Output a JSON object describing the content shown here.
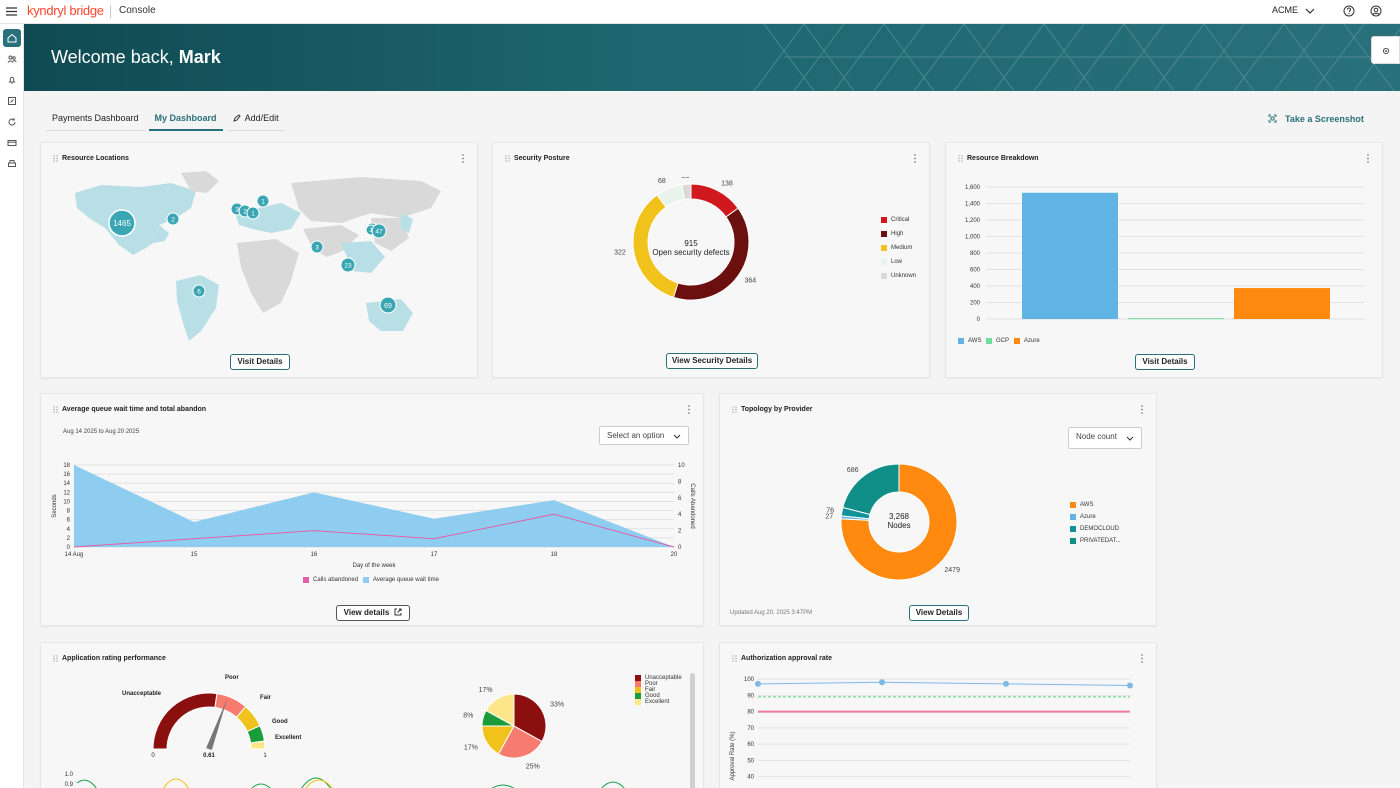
{
  "topbar": {
    "brand": "kyndryl",
    "brand_suffix": " bridge",
    "console": "Console",
    "org": "ACME"
  },
  "banner": {
    "greeting": "Welcome back, ",
    "user": "Mark"
  },
  "tabs": [
    {
      "label": "Payments Dashboard",
      "active": false
    },
    {
      "label": "My Dashboard",
      "active": true
    },
    {
      "label": "Add/Edit",
      "active": false
    }
  ],
  "screenshot_label": "Take a Screenshot",
  "resource_locations": {
    "title": "Resource Locations",
    "button": "Visit Details",
    "markers": [
      "1465",
      "2",
      "1",
      "3",
      "2",
      "1",
      "1",
      "3",
      "1",
      "47",
      "23",
      "6",
      "69"
    ]
  },
  "security_posture": {
    "title": "Security Posture",
    "button": "View Security Details",
    "center_value": "915",
    "center_label": "Open security defects",
    "chart_data": {
      "type": "pie",
      "categories": [
        "Critical",
        "High",
        "Medium",
        "Low",
        "Unknown"
      ],
      "values": [
        138,
        364,
        322,
        68,
        23
      ],
      "colors": [
        "#d0191e",
        "#6b0f0f",
        "#f1c21b",
        "#e8f3ec",
        "#d9d9d9"
      ]
    }
  },
  "resource_breakdown": {
    "title": "Resource Breakdown",
    "button": "Visit Details",
    "chart_data": {
      "type": "bar",
      "categories": [
        "AWS",
        "GCP",
        "Azure"
      ],
      "values": [
        1530,
        10,
        375
      ],
      "colors": [
        "#5fb4e3",
        "#6fdc9d",
        "#ff8a0f"
      ],
      "ylim": [
        0,
        1600
      ],
      "yticks": [
        "1,600",
        "1,400",
        "1,200",
        "1,000",
        "800",
        "600",
        "400",
        "200",
        "0"
      ],
      "legend": [
        "AWS",
        "GCP",
        "Azure"
      ]
    }
  },
  "queue": {
    "title": "Average queue wait time and total abandon",
    "date_range": "Aug 14 2025 to Aug 20 2025",
    "select_placeholder": "Select an option",
    "button": "View details",
    "chart_data": {
      "type": "area",
      "x": [
        "14 Aug",
        "15",
        "16",
        "17",
        "18",
        "20"
      ],
      "xlabel": "Day of the week",
      "ylabel": "Seconds",
      "y2label": "Calls Abandoned",
      "ylim": [
        0,
        18
      ],
      "y2lim": [
        0,
        10
      ],
      "yticks": [
        "18",
        "16",
        "14",
        "12",
        "10",
        "8",
        "6",
        "4",
        "2",
        "0"
      ],
      "y2ticks": [
        "10",
        "8",
        "6",
        "4",
        "2",
        "0"
      ],
      "series": [
        {
          "name": "Average queue wait time",
          "values": [
            18,
            5.5,
            12,
            6.2,
            10.3,
            0
          ],
          "color": "#8fcdf0"
        },
        {
          "name": "Calls abandoned",
          "values": [
            0,
            1,
            2,
            1,
            4,
            0
          ],
          "color": "#e05fa6"
        }
      ]
    }
  },
  "topology": {
    "title": "Topology by Provider",
    "select_value": "Node count",
    "center_value": "3,268",
    "center_label": "Nodes",
    "updated": "Updated Aug 20, 2025 3:47PM",
    "button": "View Details",
    "chart_data": {
      "type": "pie",
      "categories": [
        "AWS",
        "Azure",
        "DEMOCLOUD",
        "PRIVATEDAT..."
      ],
      "values": [
        2479,
        27,
        76,
        686
      ],
      "colors": [
        "#ff8a0f",
        "#5fb4e3",
        "#12919a",
        "#0f8f87"
      ]
    }
  },
  "app_rating": {
    "title": "Application rating performance",
    "gauge": {
      "labels": [
        "Unacceptable",
        "Poor",
        "Fair",
        "Good",
        "Excellent"
      ],
      "min": "0",
      "max": "1",
      "value": "0.61"
    },
    "chart_data": {
      "type": "pie",
      "categories": [
        "Unacceptable",
        "Poor",
        "Fair",
        "Good",
        "Excellent"
      ],
      "values": [
        33,
        25,
        17,
        8,
        17
      ],
      "labels": [
        "33%",
        "25%",
        "17%",
        "8%",
        "17%"
      ],
      "colors": [
        "#8b0f0f",
        "#f77b6e",
        "#f1c21b",
        "#1a9c3b",
        "#fde68a"
      ]
    },
    "line_ticks": [
      "1.0",
      "0.9"
    ]
  },
  "authorization": {
    "title": "Authorization approval rate",
    "chart_data": {
      "type": "line",
      "ylabel": "Approval Rate (%)",
      "ylim": [
        30,
        100
      ],
      "yticks": [
        "100",
        "90",
        "80",
        "70",
        "60",
        "50",
        "40",
        "30"
      ],
      "series": [
        {
          "name": "",
          "values": [
            97,
            98,
            97,
            96
          ],
          "color": "#7fb9e8"
        },
        {
          "name": "",
          "values": [
            89,
            89,
            89,
            89
          ],
          "color": "#5ad27a"
        },
        {
          "name": "",
          "values": [
            80,
            80,
            80,
            80
          ],
          "color": "#f07aa0"
        }
      ]
    }
  }
}
